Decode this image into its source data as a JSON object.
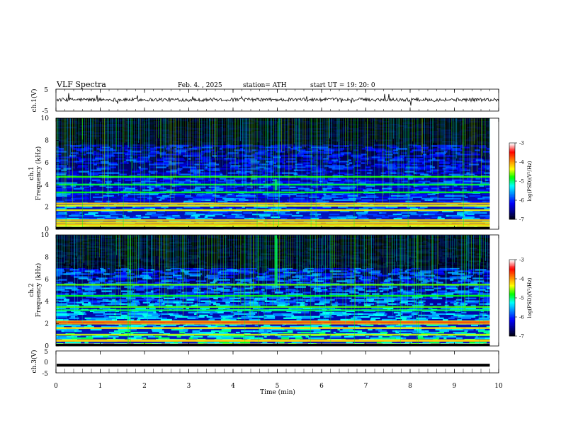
{
  "header": {
    "title": "VLF  Spectra",
    "date": "Feb. 4. , 2025",
    "station": "station= ATH",
    "start_ut": "start  UT  =    19: 20: 0"
  },
  "chart_data": [
    {
      "type": "line",
      "name": "ch1-waveform",
      "ylabel": "ch.1(V)",
      "yticks": [
        "5",
        "-5"
      ],
      "ylim": [
        -5,
        5
      ],
      "xlim": [
        0,
        10
      ],
      "approx_level": 0.2
    },
    {
      "type": "heatmap",
      "name": "ch1-spectrogram",
      "ylabel": "Frequency  (kHz)",
      "channel_label": "ch.1",
      "yticks": [
        "0",
        "2",
        "4",
        "6",
        "8",
        "10"
      ],
      "ylim": [
        0,
        10
      ],
      "xlim": [
        0,
        9.8
      ],
      "bands_khz": [
        0.3,
        0.6,
        0.8,
        1.7,
        2.1,
        2.3,
        3.3,
        4.0,
        4.7
      ],
      "colorbar": {
        "label": "log(PSD)(V²/Hz)",
        "ticks": [
          "-3",
          "-4",
          "-5",
          "-6",
          "-7"
        ],
        "range": [
          -7,
          -3
        ]
      }
    },
    {
      "type": "heatmap",
      "name": "ch2-spectrogram",
      "ylabel": "Frequency  (kHz)",
      "channel_label": "ch.2",
      "yticks": [
        "0",
        "2",
        "4",
        "6",
        "8",
        "10"
      ],
      "ylim": [
        0,
        10
      ],
      "xlim": [
        0,
        9.8
      ],
      "bands_khz": [
        0.5,
        1.0,
        1.6,
        2.0,
        2.2,
        3.2,
        3.5,
        4.5,
        5.5
      ],
      "colorbar": {
        "label": "log(PSD)(V²/Hz)",
        "ticks": [
          "-3",
          "-4",
          "-5",
          "-6",
          "-7"
        ],
        "range": [
          -7,
          -3
        ]
      }
    },
    {
      "type": "line",
      "name": "ch3-waveform",
      "ylabel": "ch.3(V)",
      "yticks": [
        "5",
        "0",
        "-5"
      ],
      "ylim": [
        -5,
        5
      ],
      "xlim": [
        0,
        9.8
      ],
      "approx_level": -1.5
    }
  ],
  "xaxis": {
    "label": "Time  (min)",
    "ticks": [
      "0",
      "1",
      "2",
      "3",
      "4",
      "5",
      "6",
      "7",
      "8",
      "9",
      "10"
    ],
    "xlim": [
      0,
      10
    ]
  },
  "colors": {
    "cmap": [
      "#000000",
      "#00008b",
      "#0000ff",
      "#0080ff",
      "#00ffff",
      "#00ff00",
      "#ffff00",
      "#ff8000",
      "#ff0000",
      "#ffffff"
    ]
  }
}
